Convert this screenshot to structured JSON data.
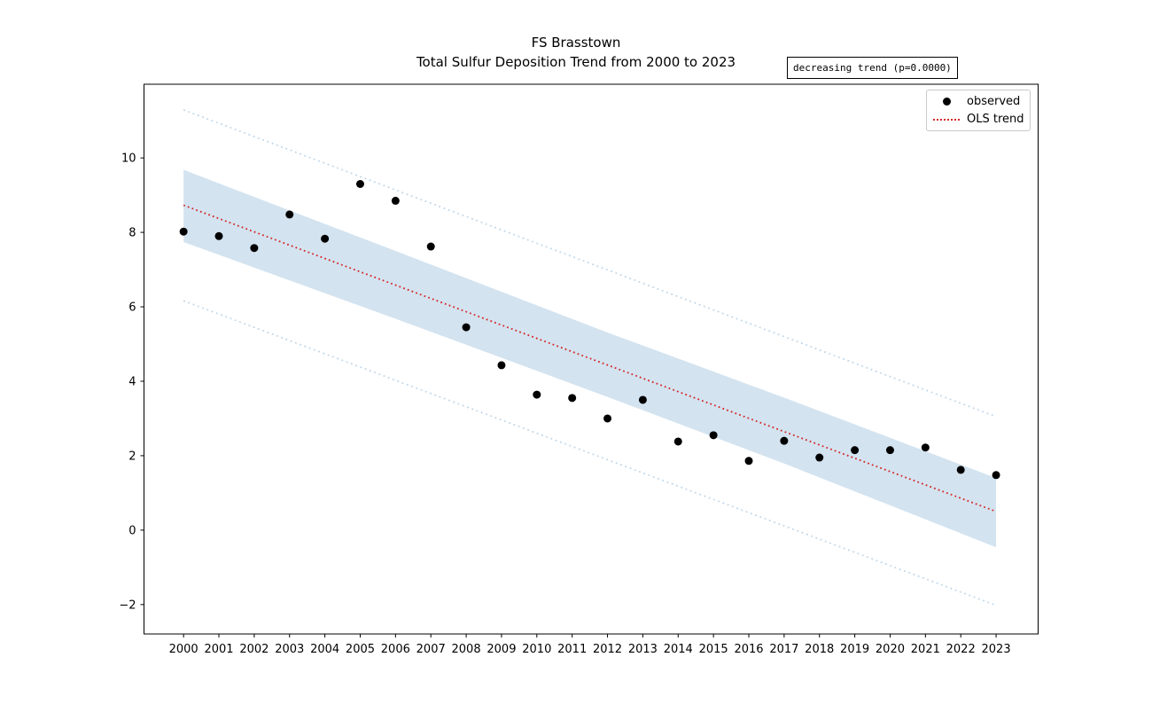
{
  "figure": {
    "title_line1": "FS Brasstown",
    "title_line2": "Total Sulfur Deposition Trend from 2000 to 2023",
    "annotation": "decreasing trend (p=0.0000)"
  },
  "legend": {
    "observed_label": "observed",
    "trend_label": "OLS trend"
  },
  "chart_data": {
    "type": "scatter",
    "title": "FS Brasstown",
    "subtitle": "Total Sulfur Deposition Trend from 2000 to 2023",
    "annotation": "decreasing trend (p=0.0000)",
    "x": [
      2000,
      2001,
      2002,
      2003,
      2004,
      2005,
      2006,
      2007,
      2008,
      2009,
      2010,
      2011,
      2012,
      2013,
      2014,
      2015,
      2016,
      2017,
      2018,
      2019,
      2020,
      2021,
      2022,
      2023
    ],
    "series": [
      {
        "name": "observed",
        "type": "scatter",
        "marker": "circle",
        "color": "#000000",
        "values": [
          8.02,
          7.9,
          7.58,
          8.48,
          7.83,
          9.3,
          8.85,
          7.62,
          5.45,
          4.43,
          3.64,
          3.55,
          3.0,
          3.5,
          2.38,
          2.55,
          1.86,
          2.4,
          1.95,
          2.15,
          2.15,
          2.22,
          1.62,
          1.48
        ]
      },
      {
        "name": "OLS trend",
        "type": "line",
        "linestyle": "dotted",
        "color": "#d62728",
        "x": [
          2000,
          2023
        ],
        "values": [
          8.73,
          0.5
        ]
      }
    ],
    "ci_band": {
      "x": [
        2000,
        2006,
        2012,
        2017,
        2023
      ],
      "upper": [
        9.68,
        7.5,
        5.31,
        3.56,
        1.4
      ],
      "lower": [
        7.74,
        5.68,
        3.58,
        1.79,
        -0.46
      ],
      "color": "#d3e3f0"
    },
    "prediction_interval": {
      "x": [
        2000,
        2023
      ],
      "upper": [
        11.29,
        3.05
      ],
      "lower": [
        6.16,
        -2.02
      ],
      "color": "#bfd7ea",
      "linestyle": "dotted"
    },
    "xlim": [
      1998.88,
      2024.19
    ],
    "ylim": [
      -2.79,
      11.98
    ],
    "xticks": [
      2000,
      2001,
      2002,
      2003,
      2004,
      2005,
      2006,
      2007,
      2008,
      2009,
      2010,
      2011,
      2012,
      2013,
      2014,
      2015,
      2016,
      2017,
      2018,
      2019,
      2020,
      2021,
      2022,
      2023
    ],
    "yticks": [
      -2,
      0,
      2,
      4,
      6,
      8,
      10
    ],
    "grid": false,
    "legend_position": "upper right",
    "xlabel": "",
    "ylabel": ""
  }
}
